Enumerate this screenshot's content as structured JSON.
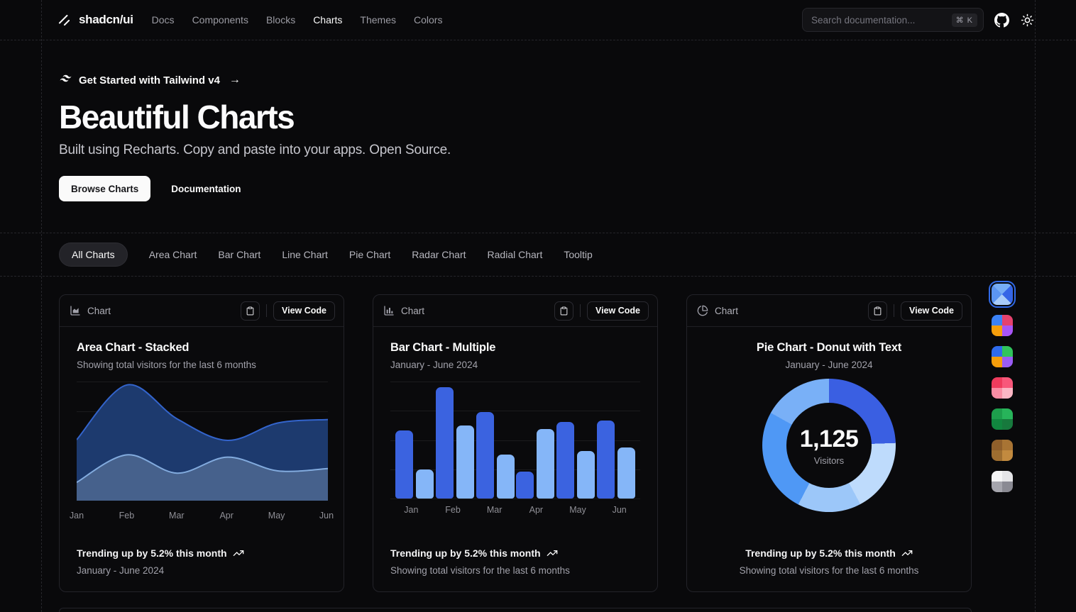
{
  "header": {
    "brand": "shadcn/ui",
    "nav": [
      "Docs",
      "Components",
      "Blocks",
      "Charts",
      "Themes",
      "Colors"
    ],
    "active_nav": "Charts",
    "search_placeholder": "Search documentation...",
    "search_shortcut": "⌘ K"
  },
  "hero": {
    "badge": "Get Started with Tailwind v4",
    "title": "Beautiful Charts",
    "subtitle": "Built using Recharts. Copy and paste into your apps. Open Source.",
    "primary_cta": "Browse Charts",
    "secondary_cta": "Documentation"
  },
  "tabs": [
    "All Charts",
    "Area Chart",
    "Bar Chart",
    "Line Chart",
    "Pie Chart",
    "Radar Chart",
    "Radial Chart",
    "Tooltip"
  ],
  "active_tab": "All Charts",
  "cards": [
    {
      "toolbar_label": "Chart",
      "view_code": "View Code",
      "title": "Area Chart - Stacked",
      "subtitle": "Showing total visitors for the last 6 months",
      "footer_line1": "Trending up by 5.2% this month",
      "footer_line2": "January - June 2024"
    },
    {
      "toolbar_label": "Chart",
      "view_code": "View Code",
      "title": "Bar Chart - Multiple",
      "subtitle": "January - June 2024",
      "footer_line1": "Trending up by 5.2% this month",
      "footer_line2": "Showing total visitors for the last 6 months"
    },
    {
      "toolbar_label": "Chart",
      "view_code": "View Code",
      "title": "Pie Chart - Donut with Text",
      "subtitle": "January - June 2024",
      "footer_line1": "Trending up by 5.2% this month",
      "footer_line2": "Showing total visitors for the last 6 months"
    }
  ],
  "chart_data": [
    {
      "type": "area",
      "variant": "stacked",
      "title": "Area Chart - Stacked",
      "categories": [
        "Jan",
        "Feb",
        "Mar",
        "Apr",
        "May",
        "Jun"
      ],
      "series": [
        {
          "name": "series-1-top",
          "values": [
            186,
            305,
            237,
            73,
            209,
            214
          ],
          "stroke": "#3364cc",
          "fill": "#1d3a6e"
        },
        {
          "name": "series-2-bottom",
          "values": [
            80,
            200,
            120,
            190,
            130,
            140
          ],
          "stroke": "#82abde",
          "fill": "#46618c"
        }
      ],
      "stacked": true,
      "ylim": [
        0,
        520
      ],
      "grid": true,
      "legend": "none"
    },
    {
      "type": "bar",
      "variant": "grouped",
      "title": "Bar Chart - Multiple",
      "categories": [
        "Jan",
        "Feb",
        "Mar",
        "Apr",
        "May",
        "Jun"
      ],
      "series": [
        {
          "name": "series-1",
          "values": [
            186,
            305,
            237,
            73,
            209,
            214
          ],
          "color": "#3b63e0"
        },
        {
          "name": "series-2",
          "values": [
            80,
            200,
            120,
            190,
            130,
            140
          ],
          "color": "#85b6f8"
        }
      ],
      "ylim": [
        0,
        320
      ],
      "grid": true,
      "legend": "none"
    },
    {
      "type": "pie",
      "variant": "donut",
      "title": "Pie Chart - Donut with Text",
      "center_value": "1,125",
      "center_label": "Visitors",
      "total": 1125,
      "slices": [
        {
          "value": 275,
          "color": "#3a5fe2"
        },
        {
          "value": 200,
          "color": "#bedbfc"
        },
        {
          "value": 173,
          "color": "#9cc7f9"
        },
        {
          "value": 287,
          "color": "#4f98f5"
        },
        {
          "value": 190,
          "color": "#79b0f7"
        }
      ],
      "legend": "none"
    }
  ],
  "theme_picker": {
    "swatches": [
      {
        "name": "blue",
        "selected": true,
        "colors": [
          "#3565e6",
          "#a9ccf8",
          "#5b95f2",
          "#77adf5"
        ],
        "angle": 45
      },
      {
        "name": "multi-warm",
        "selected": false,
        "colors": [
          "#e5426e",
          "#a855f7",
          "#f59e0b",
          "#3b82f6"
        ],
        "angle": 0
      },
      {
        "name": "multi-cool",
        "selected": false,
        "colors": [
          "#30c45c",
          "#9a5cf5",
          "#f59e0b",
          "#2f6bec"
        ],
        "angle": 0
      },
      {
        "name": "red",
        "selected": false,
        "colors": [
          "#f8577a",
          "#fbb6c4",
          "#f98da4",
          "#ef3b5d"
        ],
        "angle": 0
      },
      {
        "name": "green",
        "selected": false,
        "colors": [
          "#27b45a",
          "#17793d",
          "#11863f",
          "#1d9e4c"
        ],
        "angle": 0
      },
      {
        "name": "amber",
        "selected": false,
        "colors": [
          "#a87434",
          "#c28a3f",
          "#9e6e30",
          "#8f5f2b"
        ],
        "angle": 0
      },
      {
        "name": "mono",
        "selected": false,
        "colors": [
          "#e4e4e7",
          "#8a8a93",
          "#a5a5ad",
          "#f4f4f5"
        ],
        "angle": 0
      }
    ]
  }
}
